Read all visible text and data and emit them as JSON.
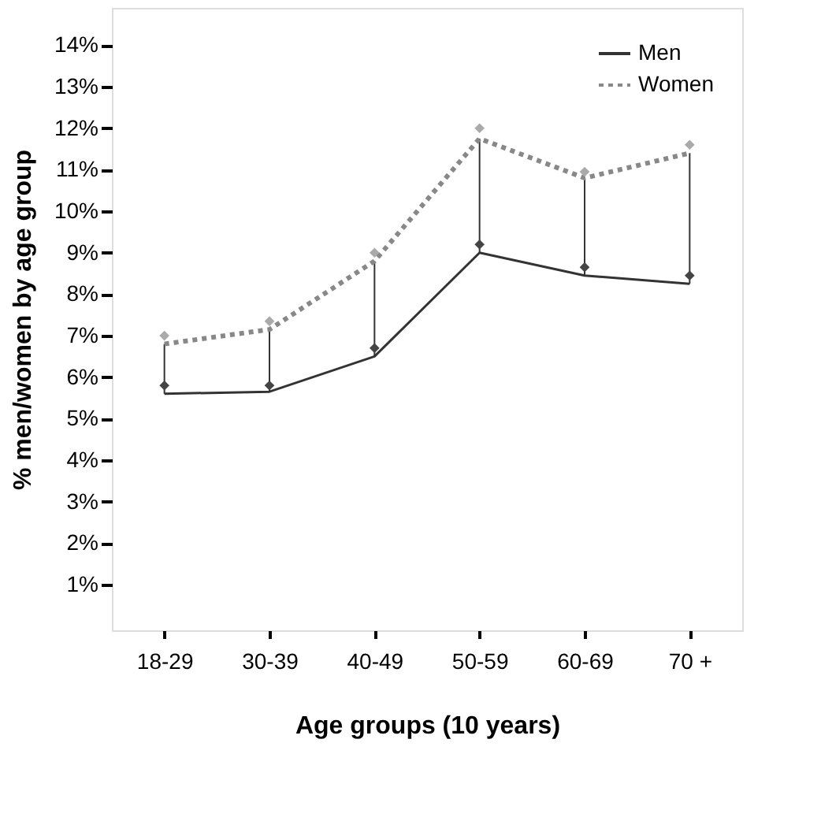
{
  "chart_data": {
    "type": "line",
    "xlabel": "Age groups (10 years)",
    "ylabel": "% men/women by age group",
    "categories": [
      "18-29",
      "30-39",
      "40-49",
      "50-59",
      "60-69",
      "70 +"
    ],
    "series": [
      {
        "name": "Men",
        "type": "line",
        "color": "#333333",
        "line_style": "solid",
        "marker": "none",
        "values": [
          5.6,
          5.65,
          6.5,
          9.0,
          8.45,
          8.25
        ]
      },
      {
        "name": "Women",
        "type": "line",
        "color": "#888888",
        "line_style": "dotted",
        "marker": "none",
        "values": [
          6.8,
          7.15,
          8.8,
          11.75,
          10.8,
          11.4
        ]
      },
      {
        "type": "scatter",
        "color": "#444444",
        "marker": "diamond",
        "values": [
          5.8,
          5.8,
          6.7,
          9.2,
          8.65,
          8.45
        ]
      },
      {
        "type": "scatter",
        "color": "#aaaaaa",
        "marker": "diamond",
        "values": [
          7.0,
          7.35,
          9.0,
          12.0,
          10.95,
          11.6
        ]
      }
    ],
    "ylim": [
      -0.1,
      14.9
    ],
    "yticks": [
      {
        "value": 1,
        "label": "1%"
      },
      {
        "value": 2,
        "label": "2%"
      },
      {
        "value": 3,
        "label": "3%"
      },
      {
        "value": 4,
        "label": "4%"
      },
      {
        "value": 5,
        "label": "5%"
      },
      {
        "value": 6,
        "label": "6%"
      },
      {
        "value": 7,
        "label": "7%"
      },
      {
        "value": 8,
        "label": "8%"
      },
      {
        "value": 9,
        "label": "9%"
      },
      {
        "value": 10,
        "label": "10%"
      },
      {
        "value": 11,
        "label": "11%"
      },
      {
        "value": 12,
        "label": "12%"
      },
      {
        "value": 13,
        "label": "13%"
      },
      {
        "value": 14,
        "label": "14%"
      }
    ],
    "grid": false,
    "legend": "top right"
  }
}
